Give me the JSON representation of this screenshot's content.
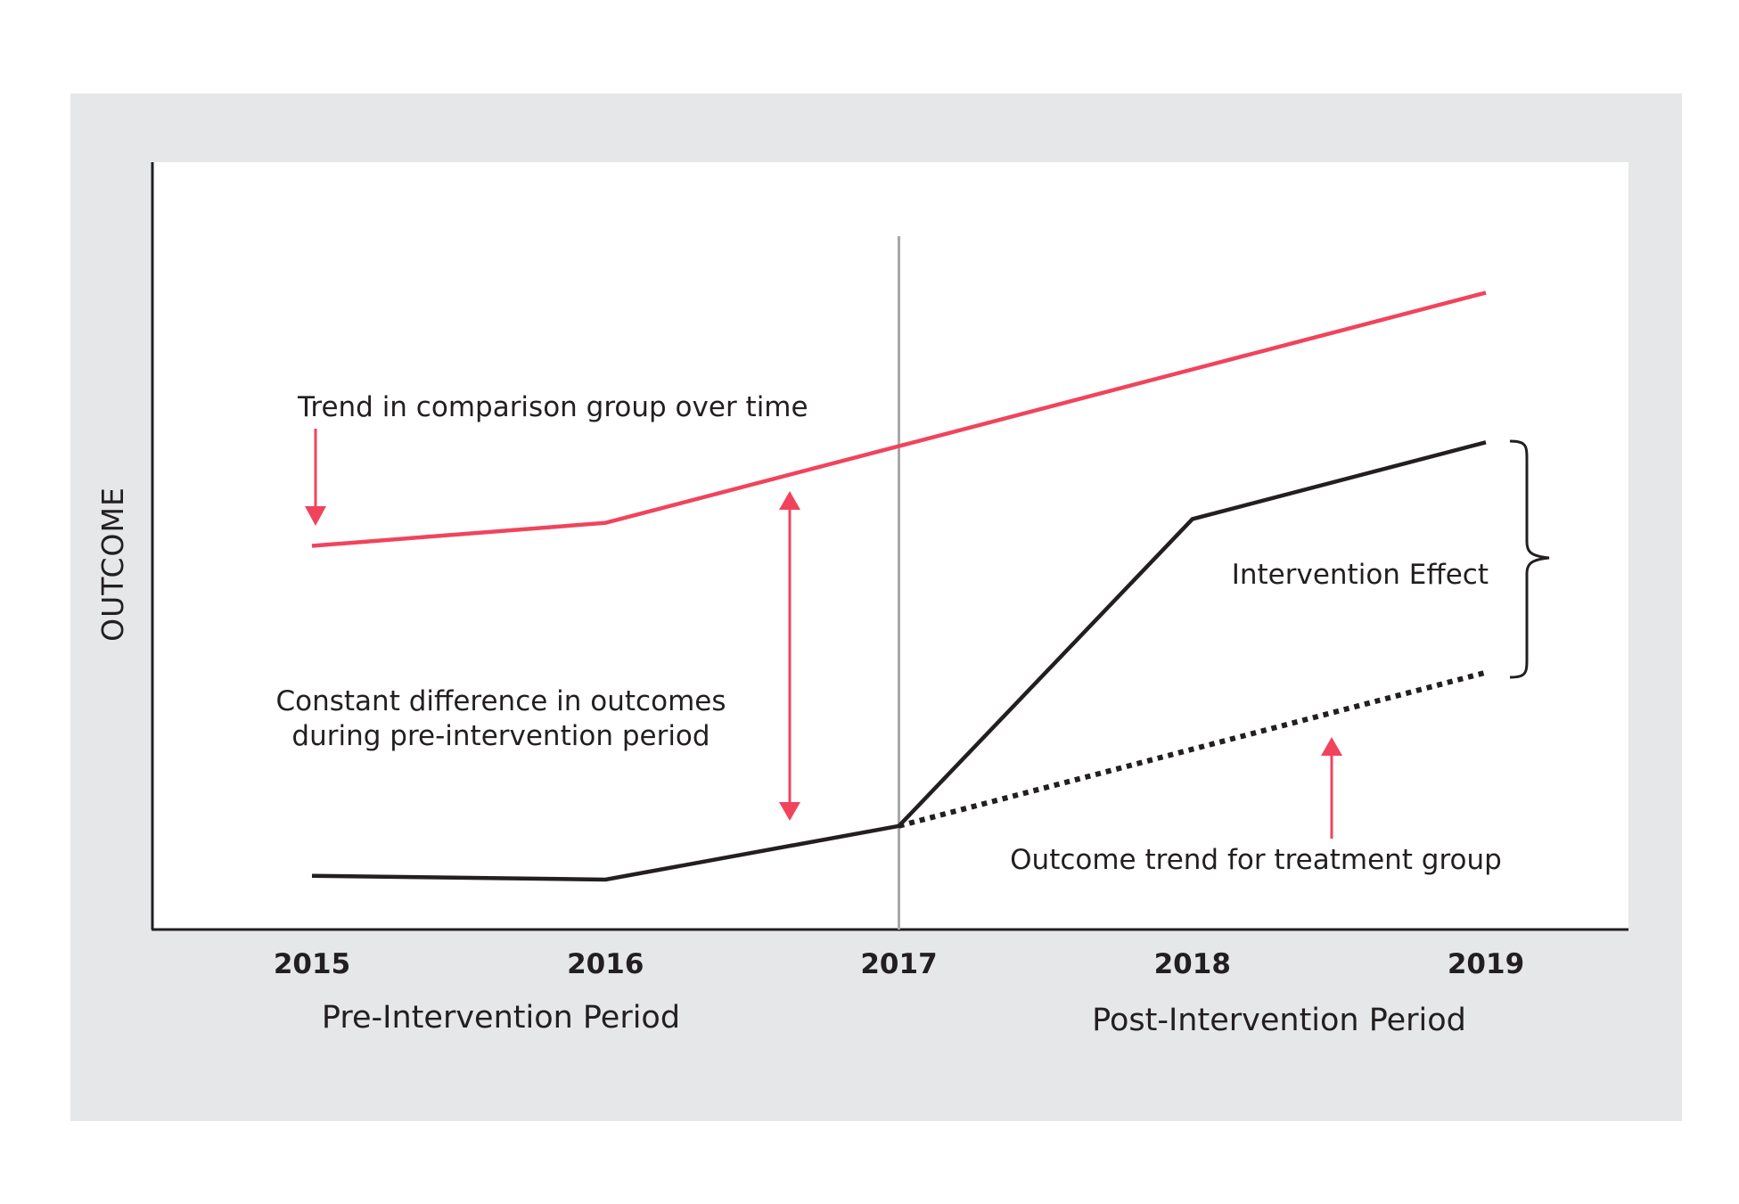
{
  "colors": {
    "page_background": "#ffffff",
    "panel_background": "#e6e7e8",
    "plot_background": "#ffffff",
    "comparison_line": "#f0445c",
    "treatment_line": "#231f20",
    "intervention_marker": "#a7a9ac",
    "annotation_arrow": "#f0445c"
  },
  "chart_data": {
    "type": "line",
    "title": "",
    "xlabel": "",
    "ylabel": "OUTCOME",
    "x": [
      "2015",
      "2016",
      "2017",
      "2018",
      "2019"
    ],
    "xlim": [
      "2015",
      "2019"
    ],
    "ylim": [
      0,
      100
    ],
    "grid": false,
    "legend": "none",
    "intervention_year": "2017",
    "series": [
      {
        "key": "comparison",
        "style": "solid",
        "color": "#f0445c",
        "x": [
          "2015",
          "2016",
          "2017",
          "2018",
          "2019"
        ],
        "values": [
          50,
          53,
          63,
          73,
          83
        ]
      },
      {
        "key": "treatment",
        "style": "solid",
        "color": "#231f20",
        "x": [
          "2015",
          "2016",
          "2017",
          "2018",
          "2019"
        ],
        "values": [
          7,
          6.5,
          13.5,
          53.5,
          63.5
        ]
      },
      {
        "key": "counterfactual",
        "style": "dotted",
        "color": "#231f20",
        "x": [
          "2017",
          "2019"
        ],
        "values": [
          13.5,
          33.5
        ]
      }
    ],
    "periods": [
      "Pre-Intervention Period",
      "Post-Intervention Period"
    ],
    "annotations": {
      "comparison_trend": "Trend in comparison group over time",
      "constant_difference_line1": "Constant difference in outcomes",
      "constant_difference_line2": "during pre-intervention period",
      "intervention_effect": "Intervention Effect",
      "treatment_trend": "Outcome trend for treatment group"
    }
  }
}
